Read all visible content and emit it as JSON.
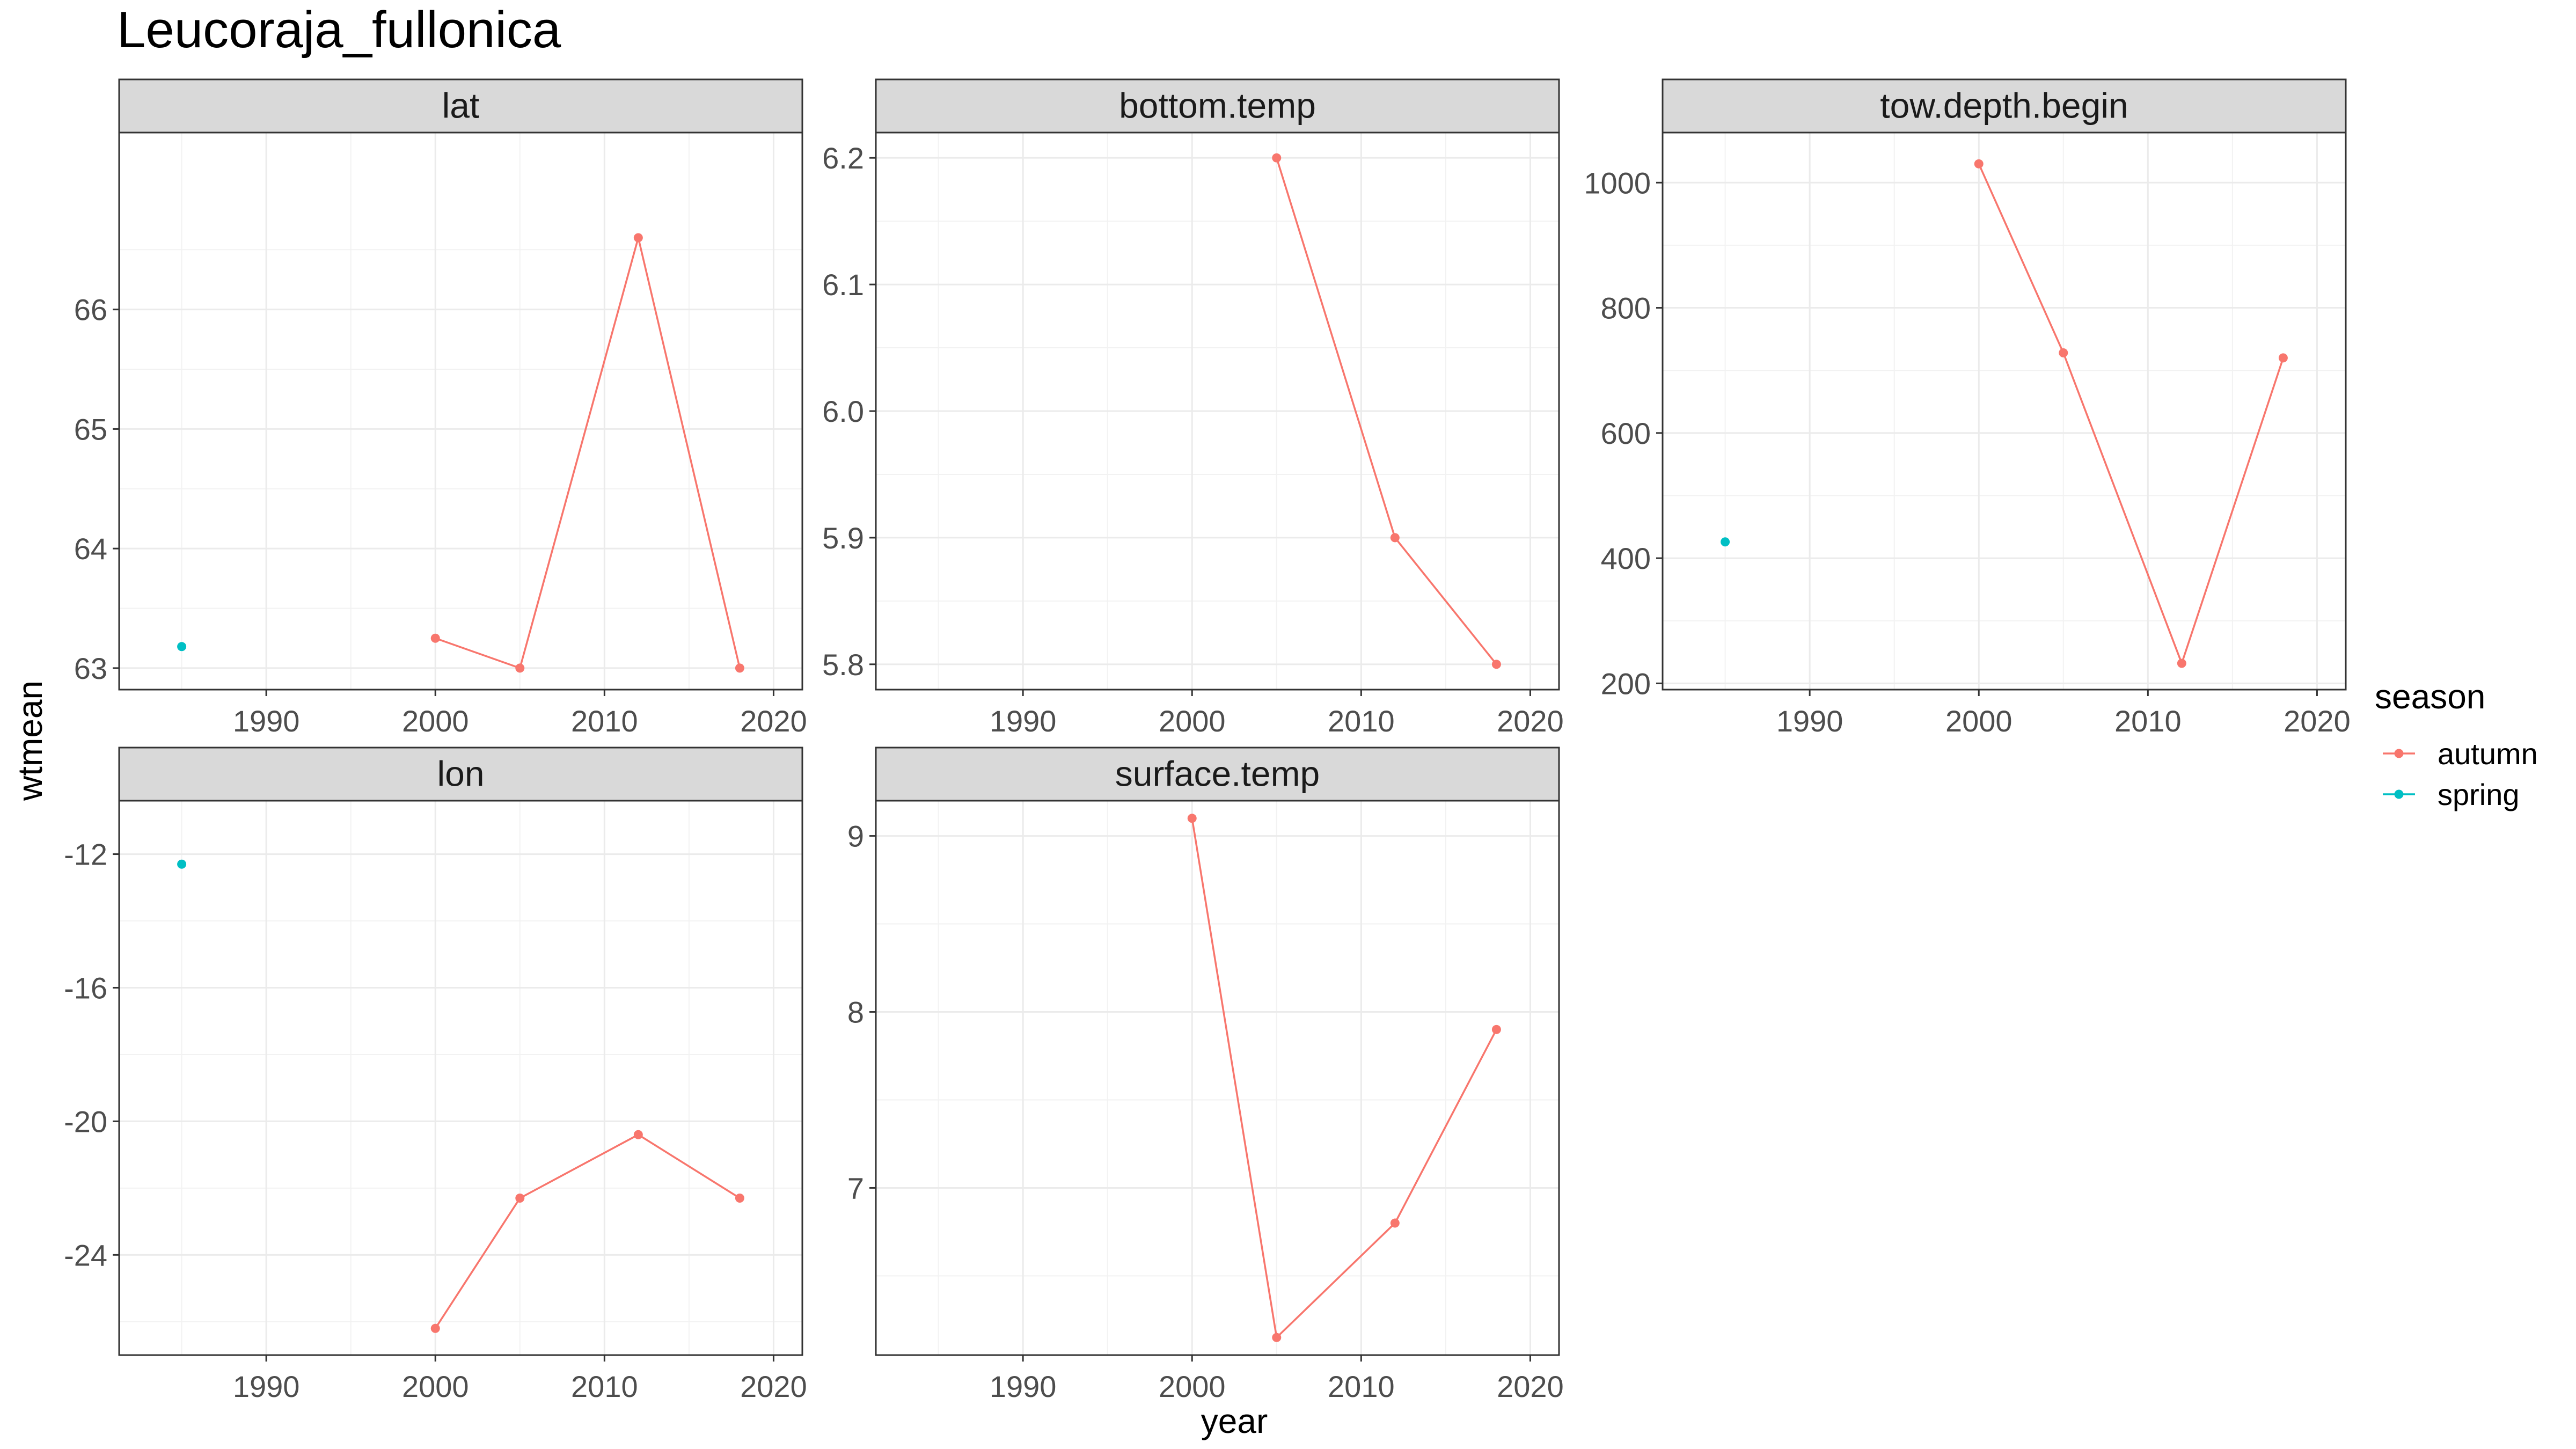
{
  "chart_data": {
    "type": "line",
    "title": "Leucoraja_fullonica",
    "xlabel": "year",
    "ylabel": "wtmean",
    "facet_layout": "3 columns x 2 rows, shared x axis",
    "grid": true,
    "legend": {
      "title": "season",
      "placement": "right",
      "entries": [
        {
          "name": "autumn",
          "color": "#F8766D"
        },
        {
          "name": "spring",
          "color": "#00BFC4"
        }
      ]
    },
    "x_ticks": [
      1990,
      2000,
      2010,
      2020
    ],
    "xlim": [
      1981.3,
      2021.7
    ],
    "panels": [
      {
        "name": "lat",
        "ylim": [
          62.82,
          67.48
        ],
        "y_ticks": [
          {
            "v": 63,
            "label": "63"
          },
          {
            "v": 64,
            "label": "64"
          },
          {
            "v": 65,
            "label": "65"
          },
          {
            "v": 66,
            "label": "66"
          }
        ],
        "series": [
          {
            "name": "autumn",
            "x": [
              2000,
              2005,
              2012,
              2018
            ],
            "y": [
              63.25,
              63.0,
              66.6,
              63.0
            ]
          },
          {
            "name": "spring",
            "x": [
              1985
            ],
            "y": [
              63.18
            ]
          }
        ]
      },
      {
        "name": "bottom.temp",
        "ylim": [
          5.78,
          6.22
        ],
        "y_ticks": [
          {
            "v": 5.8,
            "label": "5.8"
          },
          {
            "v": 5.9,
            "label": "5.9"
          },
          {
            "v": 6.0,
            "label": "6.0"
          },
          {
            "v": 6.1,
            "label": "6.1"
          },
          {
            "v": 6.2,
            "label": "6.2"
          }
        ],
        "series": [
          {
            "name": "autumn",
            "x": [
              2005,
              2012,
              2018
            ],
            "y": [
              6.2,
              5.9,
              5.8
            ]
          }
        ]
      },
      {
        "name": "tow.depth.begin",
        "ylim": [
          190,
          1080
        ],
        "y_ticks": [
          {
            "v": 200,
            "label": "200"
          },
          {
            "v": 400,
            "label": "400"
          },
          {
            "v": 600,
            "label": "600"
          },
          {
            "v": 800,
            "label": "800"
          },
          {
            "v": 1000,
            "label": "1000"
          }
        ],
        "series": [
          {
            "name": "autumn",
            "x": [
              2000,
              2005,
              2012,
              2018
            ],
            "y": [
              1030,
              728,
              232,
              720
            ]
          },
          {
            "name": "spring",
            "x": [
              1985
            ],
            "y": [
              426
            ]
          }
        ]
      },
      {
        "name": "lon",
        "ylim": [
          -27.0,
          -10.4
        ],
        "y_ticks": [
          {
            "v": -24,
            "label": "-24"
          },
          {
            "v": -20,
            "label": "-20"
          },
          {
            "v": -16,
            "label": "-16"
          },
          {
            "v": -12,
            "label": "-12"
          }
        ],
        "series": [
          {
            "name": "autumn",
            "x": [
              2000,
              2005,
              2012,
              2018
            ],
            "y": [
              -26.2,
              -22.3,
              -20.4,
              -22.3
            ]
          },
          {
            "name": "spring",
            "x": [
              1985
            ],
            "y": [
              -12.3
            ]
          }
        ]
      },
      {
        "name": "surface.temp",
        "ylim": [
          6.05,
          9.2
        ],
        "y_ticks": [
          {
            "v": 7,
            "label": "7"
          },
          {
            "v": 8,
            "label": "8"
          },
          {
            "v": 9,
            "label": "9"
          }
        ],
        "series": [
          {
            "name": "autumn",
            "x": [
              2000,
              2005,
              2012,
              2018
            ],
            "y": [
              9.1,
              6.15,
              6.8,
              7.9
            ]
          }
        ]
      }
    ]
  }
}
